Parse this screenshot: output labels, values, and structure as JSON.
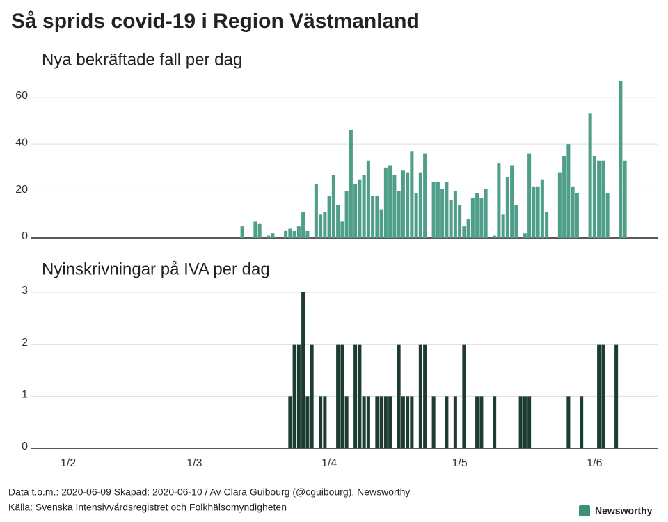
{
  "title": "Så sprids covid-19 i Region Västmanland",
  "footer": [
    "Data t.o.m.: 2020-06-09 Skapad: 2020-06-10 / Av Clara Guibourg (@cguibourg), Newsworthy",
    "Källa: Svenska Intensivvårdsregistret och Folkhälsomyndigheten"
  ],
  "brand": "Newsworthy",
  "chart_data": [
    {
      "type": "bar",
      "title": "Nya bekräftade fall per dag",
      "color": "#4e9e89",
      "ylim": [
        0,
        70
      ],
      "yticks": [
        0,
        20,
        40,
        60
      ],
      "grid": true,
      "values": [
        0,
        0,
        0,
        0,
        0,
        0,
        0,
        0,
        0,
        0,
        0,
        0,
        0,
        0,
        0,
        0,
        0,
        0,
        0,
        0,
        0,
        0,
        0,
        0,
        0,
        0,
        0,
        0,
        0,
        0,
        0,
        0,
        0,
        0,
        0,
        0,
        0,
        0,
        0,
        0,
        0,
        0,
        0,
        0,
        0,
        0,
        0,
        0,
        5,
        0,
        0,
        7,
        6,
        0,
        1,
        2,
        0,
        0,
        3,
        4,
        3,
        5,
        11,
        3,
        0,
        23,
        10,
        11,
        18,
        27,
        14,
        7,
        20,
        46,
        23,
        25,
        27,
        33,
        18,
        18,
        12,
        30,
        31,
        27,
        20,
        29,
        28,
        37,
        19,
        28,
        36,
        0,
        24,
        24,
        21,
        24,
        16,
        20,
        14,
        5,
        8,
        17,
        19,
        17,
        21,
        0,
        1,
        32,
        10,
        26,
        31,
        14,
        0,
        2,
        36,
        22,
        22,
        25,
        11,
        0,
        0,
        28,
        35,
        40,
        22,
        19,
        0,
        0,
        53,
        35,
        33,
        33,
        19,
        0,
        0,
        67,
        33,
        0,
        null,
        null,
        null,
        null,
        null,
        null
      ]
    },
    {
      "type": "bar",
      "title": "Nyinskrivningar på IVA per dag",
      "color": "#1d3c31",
      "ylim": [
        0,
        3
      ],
      "yticks": [
        0,
        1,
        2,
        3
      ],
      "grid": true,
      "categories": [
        null,
        null,
        null,
        null,
        null,
        null,
        null,
        null,
        "1/2",
        null,
        null,
        null,
        null,
        null,
        null,
        null,
        null,
        null,
        null,
        null,
        null,
        null,
        null,
        null,
        null,
        null,
        null,
        null,
        null,
        null,
        null,
        null,
        null,
        null,
        null,
        null,
        null,
        "1/3",
        null,
        null,
        null,
        null,
        null,
        null,
        null,
        null,
        null,
        null,
        null,
        null,
        null,
        null,
        null,
        null,
        null,
        null,
        null,
        null,
        null,
        null,
        null,
        null,
        null,
        null,
        null,
        null,
        null,
        null,
        "1/4",
        null,
        null,
        null,
        null,
        null,
        null,
        null,
        null,
        null,
        null,
        null,
        null,
        null,
        null,
        null,
        null,
        null,
        null,
        null,
        null,
        null,
        null,
        null,
        null,
        null,
        null,
        null,
        null,
        null,
        "1/5",
        null,
        null,
        null,
        null,
        null,
        null,
        null,
        null,
        null,
        null,
        null,
        null,
        null,
        null,
        null,
        null,
        null,
        null,
        null,
        null,
        null,
        null,
        null,
        null,
        null,
        null,
        null,
        null,
        null,
        null,
        "1/6",
        null,
        null,
        null,
        null,
        null,
        null,
        null,
        null,
        null,
        null,
        null,
        null,
        null,
        null
      ],
      "values": [
        0,
        0,
        0,
        0,
        0,
        0,
        0,
        0,
        0,
        0,
        0,
        0,
        0,
        0,
        0,
        0,
        0,
        0,
        0,
        0,
        0,
        0,
        0,
        0,
        0,
        0,
        0,
        0,
        0,
        0,
        0,
        0,
        0,
        0,
        0,
        0,
        0,
        0,
        0,
        0,
        0,
        0,
        0,
        0,
        0,
        0,
        0,
        0,
        0,
        0,
        0,
        0,
        0,
        0,
        0,
        0,
        0,
        0,
        0,
        1,
        2,
        2,
        3,
        1,
        2,
        0,
        1,
        1,
        0,
        0,
        2,
        2,
        1,
        0,
        2,
        2,
        1,
        1,
        0,
        1,
        1,
        1,
        1,
        0,
        2,
        1,
        1,
        1,
        0,
        2,
        2,
        0,
        1,
        0,
        0,
        1,
        0,
        1,
        0,
        2,
        0,
        0,
        1,
        1,
        0,
        0,
        1,
        0,
        0,
        0,
        0,
        0,
        1,
        1,
        1,
        0,
        0,
        0,
        0,
        0,
        0,
        0,
        0,
        1,
        0,
        0,
        1,
        0,
        0,
        0,
        2,
        2,
        0,
        0,
        2,
        0,
        0,
        0,
        null,
        null,
        null,
        null,
        null,
        null
      ]
    }
  ]
}
